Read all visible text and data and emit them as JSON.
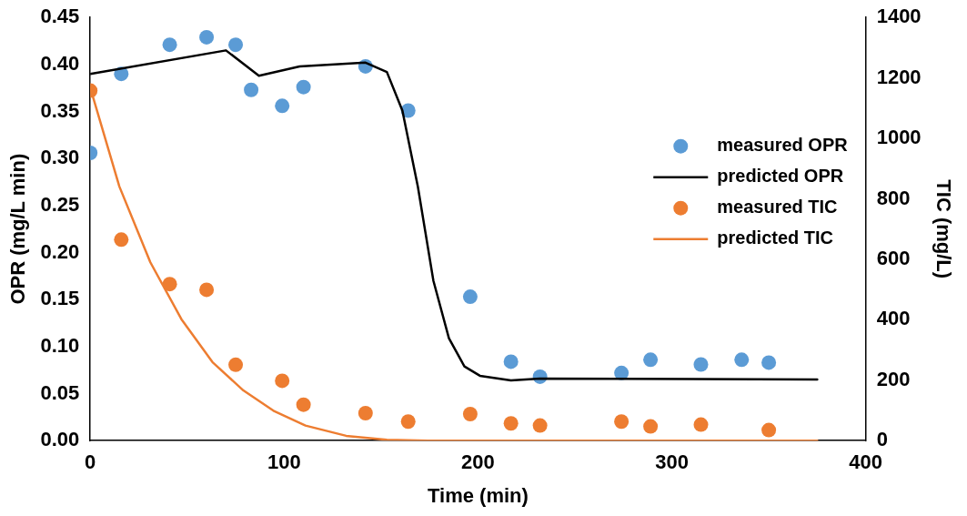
{
  "chart_data": {
    "type": "scatter",
    "xlabel": "Time (min)",
    "ylabel": "OPR (mg/L min)",
    "y2label": "TIC (mg/L)",
    "xlim": [
      0,
      400
    ],
    "xticks": [
      0,
      100,
      200,
      300,
      400
    ],
    "ylim": [
      0,
      0.45
    ],
    "yticks": [
      {
        "value": 0,
        "label": "0.00"
      },
      {
        "value": 0.05,
        "label": "0.05"
      },
      {
        "value": 0.1,
        "label": "0.10"
      },
      {
        "value": 0.15,
        "label": "0.15"
      },
      {
        "value": 0.2,
        "label": "0.20"
      },
      {
        "value": 0.25,
        "label": "0.25"
      },
      {
        "value": 0.3,
        "label": "0.30"
      },
      {
        "value": 0.35,
        "label": "0.35"
      },
      {
        "value": 0.4,
        "label": "0.40"
      },
      {
        "value": 0.45,
        "label": "0.45"
      }
    ],
    "y2lim": [
      0,
      1400
    ],
    "y2ticks": [
      0,
      200,
      400,
      600,
      800,
      1000,
      1200,
      1400
    ],
    "grid": false,
    "legend": "right",
    "series": [
      {
        "name": "measured OPR",
        "marker": "circle",
        "color": "#5b9bd5",
        "x": [
          0,
          16,
          41,
          60,
          75,
          83,
          99,
          110,
          142,
          164,
          196,
          217,
          232,
          274,
          289,
          315,
          336,
          350
        ],
        "values": [
          0.306,
          0.39,
          0.421,
          0.429,
          0.421,
          0.373,
          0.356,
          0.376,
          0.398,
          0.351,
          0.153,
          0.084,
          0.068,
          0.072,
          0.086,
          0.081,
          0.086,
          0.083
        ]
      },
      {
        "name": "predicted OPR",
        "type": "line",
        "marker": "none",
        "color": "#000000",
        "x": [
          0,
          70,
          87,
          108,
          142,
          153,
          161,
          169,
          177,
          185,
          193,
          201,
          217,
          232,
          375
        ],
        "values": [
          0.39,
          0.415,
          0.388,
          0.398,
          0.402,
          0.392,
          0.351,
          0.27,
          0.17,
          0.109,
          0.079,
          0.069,
          0.064,
          0.066,
          0.065
        ]
      },
      {
        "name": "measured TIC",
        "marker": "circle",
        "axis": "y2",
        "color": "#ed7d31",
        "x": [
          0,
          16,
          41,
          60,
          75,
          99,
          110,
          142,
          164,
          196,
          217,
          232,
          274,
          289,
          315,
          350
        ],
        "values": [
          1158,
          665,
          518,
          499,
          251,
          198,
          119,
          91,
          63,
          88,
          57,
          50,
          63,
          47,
          53,
          35
        ]
      },
      {
        "name": "predicted TIC",
        "type": "line",
        "marker": "none",
        "axis": "y2",
        "color": "#ed7d31",
        "x": [
          0,
          15,
          31,
          47,
          63,
          79,
          95,
          111,
          132,
          153,
          174,
          375
        ],
        "values": [
          1168,
          841,
          590,
          402,
          260,
          166,
          97,
          50,
          16,
          3,
          0,
          0
        ]
      }
    ]
  }
}
